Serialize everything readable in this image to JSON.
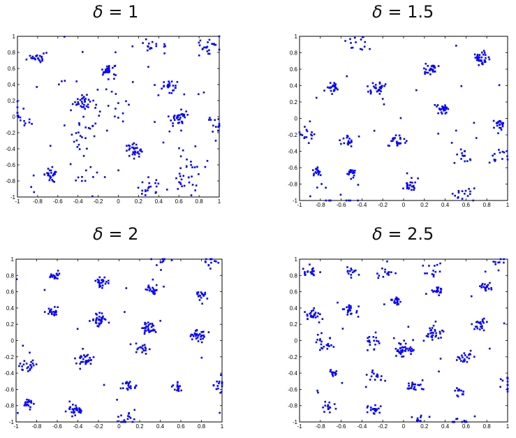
{
  "figure": {
    "panels": [
      {
        "title_symbol": "δ",
        "title_value": "= 1"
      },
      {
        "title_symbol": "δ",
        "title_value": "= 1.5"
      },
      {
        "title_symbol": "δ",
        "title_value": "= 2"
      },
      {
        "title_symbol": "δ",
        "title_value": "= 2.5"
      }
    ]
  },
  "chart_data": [
    {
      "type": "scatter",
      "title": "δ = 1",
      "xlabel": "",
      "ylabel": "",
      "xlim": [
        -1,
        1
      ],
      "ylim": [
        -1,
        1
      ],
      "xticks": [
        "-1",
        "-0.8",
        "-0.6",
        "-0.4",
        "-0.2",
        "0",
        "0.2",
        "0.4",
        "0.6",
        "0.8",
        "1"
      ],
      "yticks": [
        "-1",
        "-0.8",
        "-0.6",
        "-0.4",
        "-0.2",
        "0",
        "0.2",
        "0.4",
        "0.6",
        "0.8",
        "1"
      ],
      "grid": false,
      "marker_color": "#0000ff",
      "clusters": [
        {
          "x": -0.8,
          "y": 0.74,
          "spread": 0.03,
          "count": 22
        },
        {
          "x": -0.1,
          "y": 0.58,
          "spread": 0.04,
          "count": 30
        },
        {
          "x": 0.5,
          "y": 0.38,
          "spread": 0.04,
          "count": 26
        },
        {
          "x": -0.35,
          "y": 0.19,
          "spread": 0.05,
          "count": 32
        },
        {
          "x": 0.6,
          "y": -0.02,
          "spread": 0.05,
          "count": 34
        },
        {
          "x": 0.15,
          "y": -0.42,
          "spread": 0.04,
          "count": 30
        },
        {
          "x": -0.65,
          "y": -0.72,
          "spread": 0.04,
          "count": 26
        },
        {
          "x": -0.35,
          "y": -0.26,
          "spread": 0.1,
          "count": 22
        },
        {
          "x": 0.3,
          "y": -0.88,
          "spread": 0.06,
          "count": 20
        },
        {
          "x": 0.65,
          "y": -0.82,
          "spread": 0.06,
          "count": 18
        },
        {
          "x": 0.9,
          "y": 0.88,
          "spread": 0.06,
          "count": 22
        },
        {
          "x": 0.35,
          "y": 0.9,
          "spread": 0.05,
          "count": 14
        },
        {
          "x": -0.95,
          "y": 0.0,
          "spread": 0.07,
          "count": 16
        },
        {
          "x": 0.7,
          "y": -0.55,
          "spread": 0.08,
          "count": 14
        },
        {
          "x": 0.0,
          "y": 0.15,
          "spread": 0.12,
          "count": 16
        },
        {
          "x": -0.3,
          "y": -0.75,
          "spread": 0.06,
          "count": 10
        },
        {
          "x": 0.98,
          "y": -0.1,
          "spread": 0.05,
          "count": 12
        }
      ],
      "scatter_count": 40
    },
    {
      "type": "scatter",
      "title": "δ = 1.5",
      "xlabel": "",
      "ylabel": "",
      "xlim": [
        -1,
        1
      ],
      "ylim": [
        -1,
        1
      ],
      "xticks": [
        "-1",
        "-0.8",
        "-0.6",
        "-0.4",
        "-0.2",
        "0",
        "0.2",
        "0.4",
        "0.6",
        "0.8",
        "1"
      ],
      "yticks": [
        "-1",
        "-0.8",
        "-0.6",
        "-0.4",
        "-0.2",
        "0",
        "0.2",
        "0.4",
        "0.6",
        "0.8",
        "1"
      ],
      "grid": false,
      "marker_color": "#0000ff",
      "clusters": [
        {
          "x": 0.75,
          "y": 0.73,
          "spread": 0.04,
          "count": 32
        },
        {
          "x": 0.27,
          "y": 0.6,
          "spread": 0.03,
          "count": 26
        },
        {
          "x": -0.68,
          "y": 0.37,
          "spread": 0.03,
          "count": 26
        },
        {
          "x": -0.25,
          "y": 0.38,
          "spread": 0.04,
          "count": 32
        },
        {
          "x": 0.38,
          "y": 0.11,
          "spread": 0.03,
          "count": 28
        },
        {
          "x": 0.92,
          "y": -0.06,
          "spread": 0.03,
          "count": 22
        },
        {
          "x": -0.52,
          "y": -0.27,
          "spread": 0.03,
          "count": 18
        },
        {
          "x": -0.07,
          "y": -0.27,
          "spread": 0.04,
          "count": 26
        },
        {
          "x": -0.85,
          "y": -0.65,
          "spread": 0.03,
          "count": 16
        },
        {
          "x": -0.5,
          "y": -0.65,
          "spread": 0.03,
          "count": 14
        },
        {
          "x": 0.55,
          "y": -0.48,
          "spread": 0.05,
          "count": 14
        },
        {
          "x": 0.9,
          "y": -0.48,
          "spread": 0.05,
          "count": 14
        },
        {
          "x": 0.07,
          "y": -0.82,
          "spread": 0.04,
          "count": 22
        },
        {
          "x": 0.57,
          "y": -0.93,
          "spread": 0.05,
          "count": 16
        },
        {
          "x": -0.45,
          "y": 0.93,
          "spread": 0.07,
          "count": 14
        },
        {
          "x": -0.93,
          "y": -0.2,
          "spread": 0.05,
          "count": 16
        },
        {
          "x": -0.65,
          "y": -0.98,
          "spread": 0.15,
          "count": 14
        }
      ],
      "scatter_count": 24
    },
    {
      "type": "scatter",
      "title": "δ = 2",
      "xlabel": "",
      "ylabel": "",
      "xlim": [
        -1,
        1
      ],
      "ylim": [
        -1,
        1
      ],
      "xticks": [
        "-1",
        "-0.8",
        "-0.6",
        "-0.4",
        "-0.2",
        "0",
        "0.2",
        "0.4",
        "0.6",
        "0.8",
        "1"
      ],
      "yticks": [
        "-1",
        "-0.8",
        "-0.6",
        "-0.4",
        "-0.2",
        "0",
        "0.2",
        "0.4",
        "0.6",
        "0.8",
        "1"
      ],
      "grid": false,
      "marker_color": "#0000ff",
      "clusters": [
        {
          "x": -0.62,
          "y": 0.8,
          "spread": 0.03,
          "count": 20
        },
        {
          "x": -0.17,
          "y": 0.72,
          "spread": 0.03,
          "count": 26
        },
        {
          "x": 0.33,
          "y": 0.62,
          "spread": 0.03,
          "count": 24
        },
        {
          "x": 0.8,
          "y": 0.55,
          "spread": 0.03,
          "count": 18
        },
        {
          "x": -0.64,
          "y": 0.35,
          "spread": 0.03,
          "count": 22
        },
        {
          "x": -0.2,
          "y": 0.26,
          "spread": 0.04,
          "count": 32
        },
        {
          "x": 0.3,
          "y": 0.15,
          "spread": 0.04,
          "count": 32
        },
        {
          "x": 0.77,
          "y": 0.06,
          "spread": 0.04,
          "count": 30
        },
        {
          "x": -0.88,
          "y": -0.3,
          "spread": 0.04,
          "count": 22
        },
        {
          "x": -0.33,
          "y": -0.24,
          "spread": 0.04,
          "count": 32
        },
        {
          "x": 0.22,
          "y": -0.1,
          "spread": 0.04,
          "count": 18
        },
        {
          "x": 0.1,
          "y": -0.55,
          "spread": 0.04,
          "count": 22
        },
        {
          "x": 0.57,
          "y": -0.57,
          "spread": 0.03,
          "count": 16
        },
        {
          "x": -0.88,
          "y": -0.78,
          "spread": 0.03,
          "count": 18
        },
        {
          "x": -0.43,
          "y": -0.85,
          "spread": 0.04,
          "count": 28
        },
        {
          "x": 0.08,
          "y": -0.95,
          "spread": 0.04,
          "count": 18
        },
        {
          "x": 0.98,
          "y": -0.55,
          "spread": 0.04,
          "count": 16
        },
        {
          "x": 0.85,
          "y": 0.99,
          "spread": 0.08,
          "count": 14
        },
        {
          "x": 0.45,
          "y": 0.99,
          "spread": 0.05,
          "count": 10
        }
      ],
      "scatter_count": 16
    },
    {
      "type": "scatter",
      "title": "δ = 2.5",
      "xlabel": "",
      "ylabel": "",
      "xlim": [
        -1,
        1
      ],
      "ylim": [
        -1,
        1
      ],
      "xticks": [
        "-1",
        "-0.8",
        "-0.6",
        "-0.4",
        "-0.2",
        "0",
        "0.2",
        "0.4",
        "0.6",
        "0.8",
        "1"
      ],
      "yticks": [
        "-1",
        "-0.8",
        "-0.6",
        "-0.4",
        "-0.2",
        "0",
        "0.2",
        "0.4",
        "0.6",
        "0.8",
        "1"
      ],
      "grid": false,
      "marker_color": "#0000ff",
      "clusters": [
        {
          "x": -0.9,
          "y": 0.85,
          "spread": 0.04,
          "count": 18
        },
        {
          "x": -0.5,
          "y": 0.85,
          "spread": 0.03,
          "count": 14
        },
        {
          "x": -0.17,
          "y": 0.82,
          "spread": 0.04,
          "count": 14
        },
        {
          "x": 0.28,
          "y": 0.85,
          "spread": 0.06,
          "count": 12
        },
        {
          "x": 0.8,
          "y": 0.66,
          "spread": 0.03,
          "count": 18
        },
        {
          "x": 0.33,
          "y": 0.6,
          "spread": 0.03,
          "count": 18
        },
        {
          "x": -0.08,
          "y": 0.48,
          "spread": 0.03,
          "count": 20
        },
        {
          "x": -0.87,
          "y": 0.32,
          "spread": 0.04,
          "count": 28
        },
        {
          "x": -0.52,
          "y": 0.38,
          "spread": 0.04,
          "count": 24
        },
        {
          "x": 0.75,
          "y": 0.2,
          "spread": 0.04,
          "count": 22
        },
        {
          "x": 0.28,
          "y": 0.1,
          "spread": 0.05,
          "count": 30
        },
        {
          "x": -0.75,
          "y": -0.02,
          "spread": 0.06,
          "count": 22
        },
        {
          "x": -0.3,
          "y": -0.02,
          "spread": 0.06,
          "count": 18
        },
        {
          "x": 0.0,
          "y": -0.1,
          "spread": 0.05,
          "count": 42
        },
        {
          "x": 0.6,
          "y": -0.2,
          "spread": 0.04,
          "count": 22
        },
        {
          "x": -0.68,
          "y": -0.4,
          "spread": 0.03,
          "count": 14
        },
        {
          "x": -0.28,
          "y": -0.45,
          "spread": 0.04,
          "count": 16
        },
        {
          "x": 0.1,
          "y": -0.58,
          "spread": 0.04,
          "count": 22
        },
        {
          "x": 0.55,
          "y": -0.62,
          "spread": 0.03,
          "count": 14
        },
        {
          "x": 0.98,
          "y": -0.55,
          "spread": 0.06,
          "count": 14
        },
        {
          "x": -0.3,
          "y": -0.85,
          "spread": 0.04,
          "count": 22
        },
        {
          "x": -0.72,
          "y": -0.82,
          "spread": 0.03,
          "count": 14
        },
        {
          "x": 0.15,
          "y": -0.97,
          "spread": 0.03,
          "count": 10
        },
        {
          "x": 0.55,
          "y": -0.99,
          "spread": 0.08,
          "count": 12
        },
        {
          "x": 0.9,
          "y": 0.99,
          "spread": 0.06,
          "count": 10
        }
      ],
      "scatter_count": 20
    }
  ]
}
